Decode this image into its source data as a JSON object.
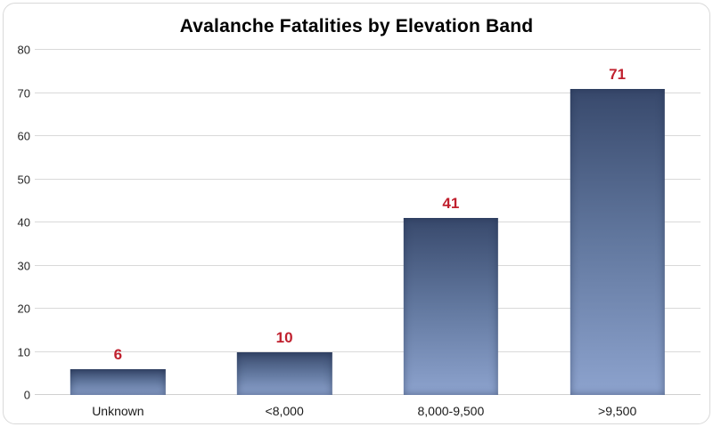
{
  "chart_data": {
    "type": "bar",
    "title": "Avalanche Fatalities by Elevation Band",
    "categories": [
      "Unknown",
      "<8,000",
      "8,000-9,500",
      ">9,500"
    ],
    "values": [
      6,
      10,
      41,
      71
    ],
    "xlabel": "",
    "ylabel": "",
    "ylim": [
      0,
      80
    ],
    "yticks": [
      0,
      10,
      20,
      30,
      40,
      50,
      60,
      70,
      80
    ],
    "grid": true,
    "legend": "none",
    "data_label_color": "#c0202e",
    "bar_gradient_top": "#38496c",
    "bar_gradient_mid": "#62789f",
    "bar_gradient_bottom": "#8da3ce",
    "gridline_color": "#d9d9d9",
    "frame_border_color": "#d9d9d9",
    "background_color": "#ffffff"
  }
}
